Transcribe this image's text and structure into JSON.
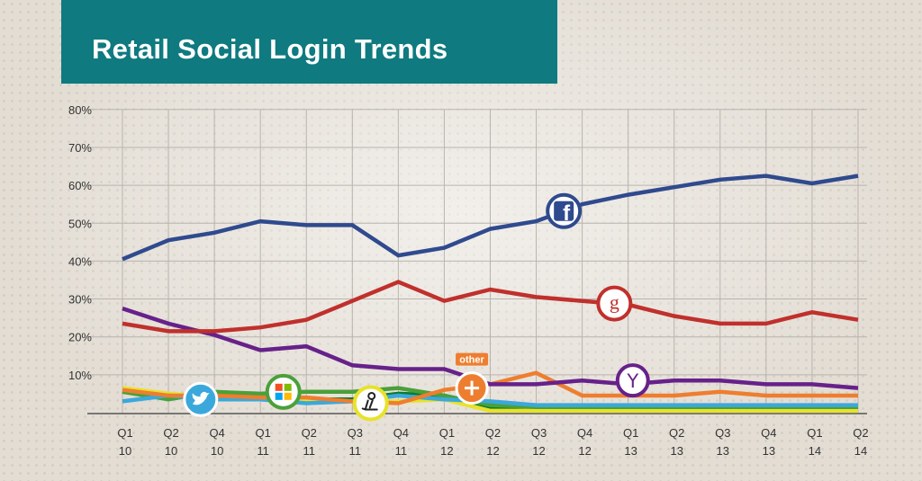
{
  "header": {
    "title": "Retail Social Login Trends"
  },
  "chart_data": {
    "type": "line",
    "title": "Retail Social Login Trends",
    "ylim": [
      0,
      80
    ],
    "yticks": [
      10,
      20,
      30,
      40,
      50,
      60,
      70,
      80
    ],
    "ytick_labels": [
      "10%",
      "20%",
      "30%",
      "40%",
      "50%",
      "60%",
      "70%",
      "80%"
    ],
    "grid": true,
    "categories": [
      [
        "Q1",
        "10"
      ],
      [
        "Q2",
        "10"
      ],
      [
        "Q4",
        "10"
      ],
      [
        "Q1",
        "11"
      ],
      [
        "Q2",
        "11"
      ],
      [
        "Q3",
        "11"
      ],
      [
        "Q4",
        "11"
      ],
      [
        "Q1",
        "12"
      ],
      [
        "Q2",
        "12"
      ],
      [
        "Q3",
        "12"
      ],
      [
        "Q4",
        "12"
      ],
      [
        "Q1",
        "13"
      ],
      [
        "Q2",
        "13"
      ],
      [
        "Q3",
        "13"
      ],
      [
        "Q4",
        "13"
      ],
      [
        "Q1",
        "14"
      ],
      [
        "Q2",
        "14"
      ]
    ],
    "series": [
      {
        "icon": "facebook-icon",
        "color": "#2f4a8e",
        "values": [
          40.5,
          45.5,
          47.5,
          50.5,
          49.5,
          49.5,
          41.5,
          43.5,
          48.5,
          50.5,
          55,
          57.5,
          59.5,
          61.5,
          62.5,
          60.5,
          62.5
        ],
        "icon_pos": 9.6
      },
      {
        "icon": "google-icon",
        "color": "#c0302c",
        "values": [
          23.5,
          21.5,
          21.5,
          22.5,
          24.5,
          29.5,
          34.5,
          29.5,
          32.5,
          30.5,
          29.5,
          28.5,
          25.5,
          23.5,
          23.5,
          26.5,
          24.5
        ],
        "icon_pos": 10.7
      },
      {
        "icon": "yahoo-icon",
        "color": "#67218a",
        "values": [
          27.5,
          23.5,
          20.5,
          16.5,
          17.5,
          12.5,
          11.5,
          11.5,
          7.5,
          7.5,
          8.5,
          7.5,
          8.5,
          8.5,
          7.5,
          7.5,
          6.5
        ],
        "icon_pos": 11.1
      },
      {
        "icon": "other-icon",
        "color": "#ee7e2f",
        "values": [
          6,
          4.5,
          4.5,
          4,
          4,
          3,
          2.5,
          6,
          7.5,
          10.5,
          4.5,
          4.5,
          4.5,
          5.5,
          4.5,
          4.5,
          4.5
        ],
        "icon_pos": 7.6,
        "label": "other"
      },
      {
        "icon": "twitter-icon",
        "color": "#3ba8dc",
        "values": [
          3,
          4.5,
          3.5,
          3.5,
          2.5,
          3,
          4.5,
          3.5,
          3,
          2,
          2,
          2,
          2,
          2,
          2,
          2,
          2
        ],
        "icon_pos": 1.7
      },
      {
        "icon": "microsoft-icon",
        "color": "#4aa03a",
        "values": [
          5.5,
          3.5,
          5.5,
          5,
          5.5,
          5.5,
          6.5,
          4.5,
          2,
          1.5,
          1.5,
          1.5,
          1.5,
          1.5,
          1.5,
          1.5,
          1.5
        ],
        "icon_pos": 3.5
      },
      {
        "icon": "aim-icon",
        "color": "#e8e22a",
        "values": [
          6.5,
          5,
          4,
          4,
          3.5,
          3,
          3,
          3.5,
          0.5,
          0.5,
          0.5,
          0.5,
          0.5,
          0.5,
          0.5,
          0.5,
          0.5
        ],
        "icon_pos": 5.4
      },
      {
        "icon": "green-line",
        "color": "#0c7a2e",
        "values": [
          5.5,
          4.5,
          5,
          4,
          3.5,
          3.5,
          5,
          4.5,
          1.5,
          1,
          1,
          1,
          1,
          1,
          1,
          1,
          1
        ]
      }
    ]
  }
}
